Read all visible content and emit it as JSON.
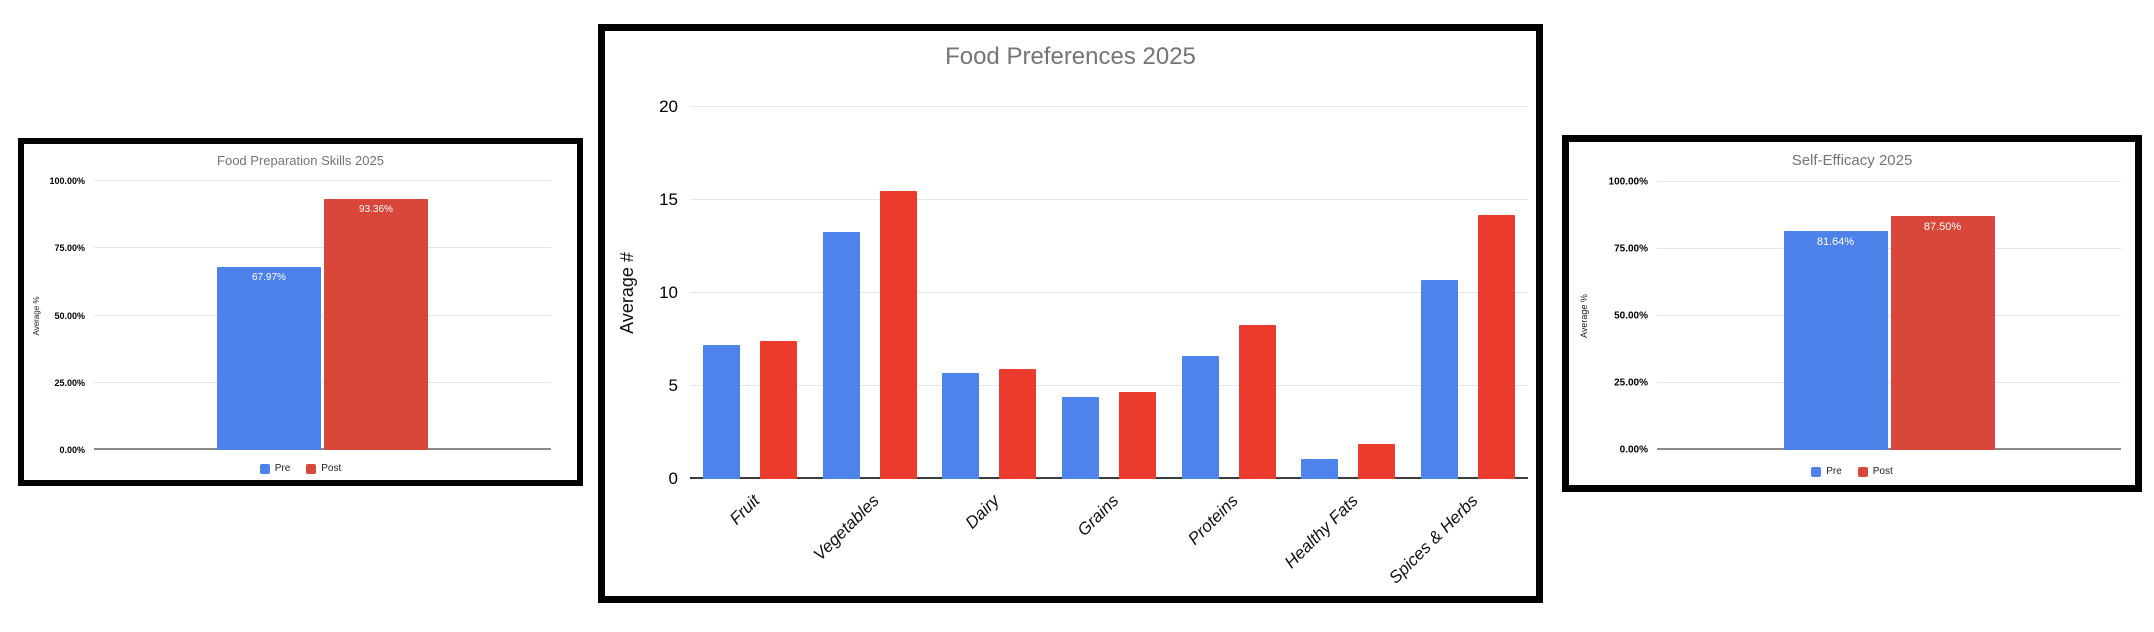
{
  "page": {
    "background": "#ffffff",
    "chart_frame_color": "#000000",
    "title_color": "#757575",
    "gridline_color": "#e6e6e6"
  },
  "chart_data": [
    {
      "type": "bar",
      "title": "Food Preparation Skills 2025",
      "ylabel": "Average %",
      "xlabel": "",
      "ylim": [
        0,
        100
      ],
      "yticks": [
        "100.00%",
        "75.00%",
        "50.00%",
        "25.00%",
        "0.00%"
      ],
      "grid": true,
      "categories": [
        ""
      ],
      "series": [
        {
          "name": "Pre",
          "color": "#4d82eb",
          "values": [
            67.97
          ],
          "bar_labels": [
            "67.97%"
          ]
        },
        {
          "name": "Post",
          "color": "#d9463a",
          "values": [
            93.36
          ],
          "bar_labels": [
            "93.36%"
          ]
        }
      ],
      "legend": {
        "position": "bottom",
        "entries": [
          "Pre",
          "Post"
        ]
      }
    },
    {
      "type": "bar",
      "title": "Food Preferences 2025",
      "ylabel": "Average #",
      "xlabel": "",
      "ylim": [
        0,
        20
      ],
      "yticks": [
        "20",
        "15",
        "10",
        "5",
        "0"
      ],
      "grid": true,
      "categories": [
        "Fruit",
        "Vegetables",
        "Dairy",
        "Grains",
        "Proteins",
        "Healthy Fats",
        "Spices & Herbs"
      ],
      "series": [
        {
          "name": "",
          "color": "#4e83ec",
          "values": [
            7.2,
            13.3,
            5.7,
            4.4,
            6.6,
            1.1,
            10.7
          ],
          "bar_labels": []
        },
        {
          "name": "",
          "color": "#ea3b2c",
          "values": [
            7.4,
            15.5,
            5.9,
            4.7,
            8.3,
            1.9,
            14.2
          ],
          "bar_labels": []
        }
      ],
      "legend": null
    },
    {
      "type": "bar",
      "title": "Self-Efficacy 2025",
      "ylabel": "Average %",
      "xlabel": "",
      "ylim": [
        0,
        100
      ],
      "yticks": [
        "100.00%",
        "75.00%",
        "50.00%",
        "25.00%",
        "0.00%"
      ],
      "grid": true,
      "categories": [
        ""
      ],
      "series": [
        {
          "name": "Pre",
          "color": "#4d82eb",
          "values": [
            81.64
          ],
          "bar_labels": [
            "81.64%"
          ]
        },
        {
          "name": "Post",
          "color": "#d9463a",
          "values": [
            87.5
          ],
          "bar_labels": [
            "87.50%"
          ]
        }
      ],
      "legend": {
        "position": "bottom",
        "entries": [
          "Pre",
          "Post"
        ]
      }
    }
  ]
}
